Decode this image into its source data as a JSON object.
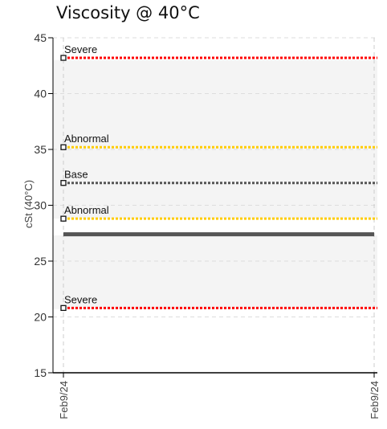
{
  "chart_data": {
    "type": "line",
    "title": "Viscosity @ 40°C",
    "ylabel": "cSt (40°C)",
    "xlabel": "",
    "ylim": [
      15,
      45
    ],
    "yticks": [
      15,
      20,
      25,
      30,
      35,
      40,
      45
    ],
    "xticks": [
      "Feb9/24",
      "Feb9/24"
    ],
    "grid": true,
    "bands": [
      {
        "from": 20.7,
        "to": 27.3
      },
      {
        "from": 28.8,
        "to": 35.0
      },
      {
        "from": 35.0,
        "to": 43.0
      }
    ],
    "limits": [
      {
        "label": "Severe",
        "value": 43.2,
        "color": "#ff0000"
      },
      {
        "label": "Abnormal",
        "value": 35.2,
        "color": "#ffcc00"
      },
      {
        "label": "Base",
        "value": 32.0,
        "color": "#555555"
      },
      {
        "label": "Abnormal",
        "value": 28.8,
        "color": "#ffcc00"
      },
      {
        "label": "Severe",
        "value": 20.8,
        "color": "#ff0000"
      }
    ],
    "series": [
      {
        "values": [
          27.4,
          27.4
        ],
        "color": "#555555"
      }
    ]
  }
}
